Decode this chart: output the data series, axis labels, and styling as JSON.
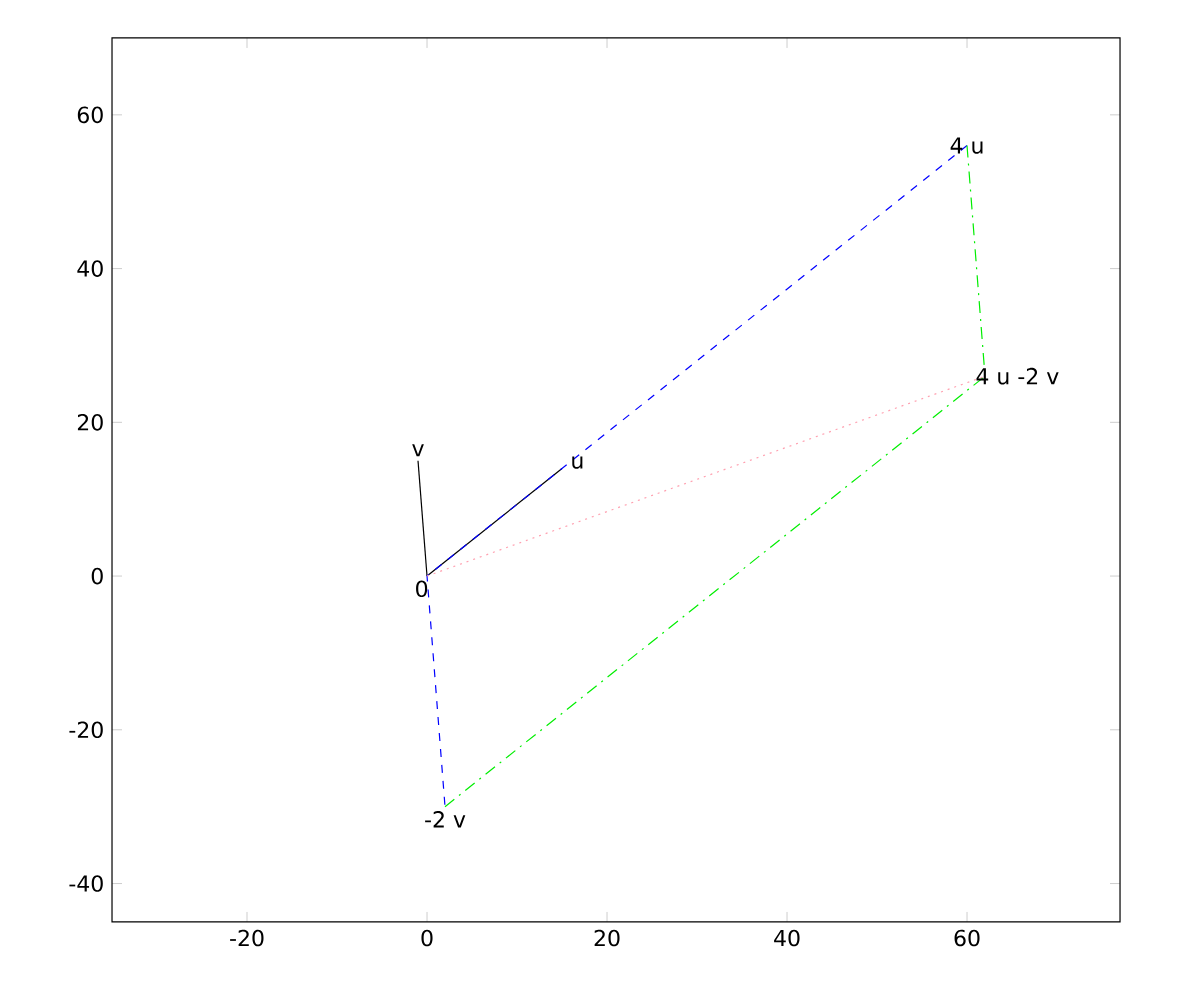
{
  "chart_data": {
    "type": "line",
    "xlim": [
      -35,
      77
    ],
    "ylim": [
      -45,
      70
    ],
    "xticks": [
      -20,
      0,
      20,
      40,
      60
    ],
    "yticks": [
      -40,
      -20,
      0,
      20,
      40,
      60
    ],
    "grid": false,
    "marker": "none",
    "series": [
      {
        "color": "#000000",
        "line_style": "solid",
        "x": [
          0,
          15
        ],
        "values": [
          0,
          14
        ]
      },
      {
        "color": "#000000",
        "line_style": "solid",
        "x": [
          0,
          -1
        ],
        "values": [
          0,
          15
        ]
      },
      {
        "color": "#0000ff",
        "line_style": "dashed",
        "x": [
          60,
          0,
          2
        ],
        "values": [
          56,
          0,
          -30
        ]
      },
      {
        "color": "#00ee00",
        "line_style": "dashdot",
        "x": [
          60,
          62,
          2
        ],
        "values": [
          56,
          26,
          -30
        ]
      },
      {
        "color": "#ffa0b0",
        "line_style": "dotted",
        "x": [
          0,
          62
        ],
        "values": [
          0,
          26
        ]
      }
    ],
    "annotations": [
      {
        "text": "0",
        "x": 0,
        "y": 0
      },
      {
        "text": "u",
        "x": 15,
        "y": 14
      },
      {
        "text": "v",
        "x": -1,
        "y": 15
      },
      {
        "text": "4 u",
        "x": 60,
        "y": 56
      },
      {
        "text": "-2 v",
        "x": 2,
        "y": -30
      },
      {
        "text": "4 u -2 v",
        "x": 62,
        "y": 26
      }
    ]
  }
}
